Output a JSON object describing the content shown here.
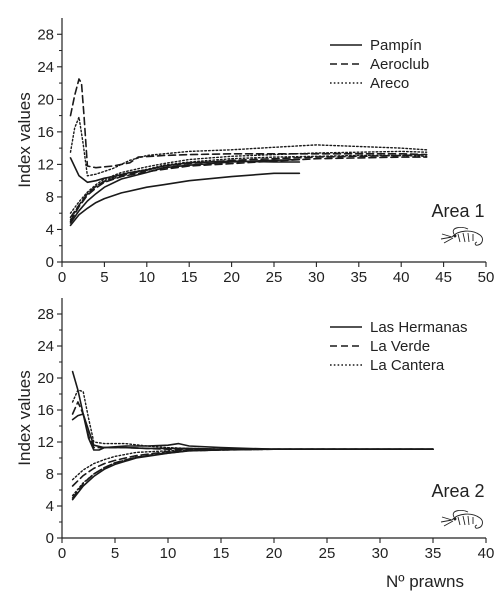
{
  "chart_data": [
    {
      "type": "line",
      "panel": "top",
      "ylabel": "Index values",
      "xlabel": "",
      "xlim": [
        0,
        50
      ],
      "ylim": [
        0,
        30
      ],
      "xticks": [
        0,
        5,
        10,
        15,
        20,
        25,
        30,
        35,
        40,
        45,
        50
      ],
      "yticks": [
        0,
        4,
        8,
        12,
        16,
        20,
        24,
        28
      ],
      "annotation": "Area 1",
      "icon": "prawn-icon",
      "legend_position": "top-right",
      "grid": false,
      "legend": [
        {
          "name": "Pampín",
          "style": "solid"
        },
        {
          "name": "Aeroclub",
          "style": "dashed"
        },
        {
          "name": "Areco",
          "style": "dotted"
        }
      ],
      "series": [
        {
          "name": "Pampín",
          "style": "solid",
          "x": [
            1,
            2,
            3,
            4,
            5,
            6,
            8,
            10,
            12,
            15,
            20,
            25,
            28
          ],
          "y": [
            12.8,
            10.6,
            9.8,
            10.0,
            10.3,
            10.5,
            11.0,
            11.3,
            11.8,
            12.2,
            12.4,
            12.3,
            12.3
          ]
        },
        {
          "name": "Pampín",
          "style": "solid",
          "x": [
            1,
            2,
            3,
            4,
            5,
            7,
            10,
            12,
            15,
            20,
            25,
            28
          ],
          "y": [
            4.5,
            5.8,
            6.6,
            7.3,
            7.8,
            8.5,
            9.2,
            9.5,
            10.0,
            10.5,
            10.9,
            10.9
          ]
        },
        {
          "name": "Pampín",
          "style": "solid",
          "x": [
            1,
            2,
            3,
            4,
            5,
            7,
            10,
            12,
            15,
            20,
            25,
            28
          ],
          "y": [
            4.8,
            6.3,
            7.5,
            8.4,
            9.2,
            10.2,
            11.0,
            11.6,
            11.9,
            12.3,
            12.5,
            12.6
          ]
        },
        {
          "name": "Aeroclub",
          "style": "dashed",
          "x": [
            1,
            1.5,
            2,
            2.3,
            2.6,
            3,
            4,
            6,
            8,
            9,
            12,
            15,
            20,
            25,
            30,
            35,
            40,
            43
          ],
          "y": [
            18.0,
            20.5,
            22.5,
            22.0,
            18.0,
            11.8,
            11.6,
            11.8,
            12.2,
            12.9,
            13.1,
            13.2,
            13.3,
            13.3,
            13.3,
            13.3,
            13.3,
            13.2
          ]
        },
        {
          "name": "Aeroclub",
          "style": "dashed",
          "x": [
            1,
            2,
            3,
            4,
            5,
            7,
            10,
            12,
            15,
            20,
            25,
            30,
            35,
            40,
            43
          ],
          "y": [
            5.5,
            7.0,
            8.4,
            9.3,
            9.9,
            10.6,
            11.3,
            11.8,
            12.1,
            12.5,
            12.7,
            12.9,
            13.0,
            13.1,
            13.2
          ]
        },
        {
          "name": "Aeroclub",
          "style": "dashed",
          "x": [
            1,
            2,
            3,
            4,
            5,
            7,
            10,
            12,
            15,
            20,
            25,
            30,
            35,
            40,
            43
          ],
          "y": [
            5.0,
            6.8,
            8.2,
            9.1,
            9.8,
            10.5,
            11.1,
            11.4,
            11.8,
            12.1,
            12.4,
            12.7,
            12.8,
            12.9,
            12.9
          ]
        },
        {
          "name": "Areco",
          "style": "dotted",
          "x": [
            1,
            1.5,
            2,
            2.5,
            3,
            4,
            6,
            8,
            10,
            12,
            15,
            20,
            25,
            30,
            35,
            40,
            43
          ],
          "y": [
            13.5,
            16.5,
            17.8,
            14.5,
            10.6,
            10.8,
            11.5,
            12.5,
            13.1,
            13.3,
            13.6,
            13.8,
            14.1,
            14.4,
            14.2,
            14.0,
            13.8
          ]
        },
        {
          "name": "Areco",
          "style": "dotted",
          "x": [
            1,
            2,
            3,
            4,
            5,
            7,
            10,
            12,
            15,
            20,
            25,
            30,
            35,
            40,
            43
          ],
          "y": [
            6.0,
            7.4,
            8.6,
            9.5,
            10.2,
            11.0,
            11.7,
            12.1,
            12.6,
            13.0,
            13.2,
            13.4,
            13.5,
            13.6,
            13.5
          ]
        },
        {
          "name": "Areco",
          "style": "dotted",
          "x": [
            1,
            2,
            3,
            4,
            5,
            7,
            10,
            12,
            15,
            20,
            25,
            30,
            35,
            40,
            43
          ],
          "y": [
            5.2,
            7.0,
            8.4,
            9.3,
            10.0,
            10.8,
            11.4,
            11.9,
            12.3,
            12.7,
            12.9,
            13.0,
            13.1,
            13.1,
            13.0
          ]
        }
      ]
    },
    {
      "type": "line",
      "panel": "bottom",
      "ylabel": "Index values",
      "xlabel": "Nº prawns",
      "xlim": [
        0,
        40
      ],
      "ylim": [
        0,
        30
      ],
      "xticks": [
        0,
        5,
        10,
        15,
        20,
        25,
        30,
        35,
        40
      ],
      "yticks": [
        0,
        4,
        8,
        12,
        16,
        20,
        24,
        28
      ],
      "annotation": "Area 2",
      "icon": "prawn-icon",
      "legend_position": "top-right",
      "grid": false,
      "legend": [
        {
          "name": "Las Hermanas",
          "style": "solid"
        },
        {
          "name": "La Verde",
          "style": "dashed"
        },
        {
          "name": "La Cantera",
          "style": "dotted"
        }
      ],
      "series": [
        {
          "name": "Las Hermanas",
          "style": "solid",
          "x": [
            1,
            1.5,
            2,
            2.5,
            3,
            3.5,
            4,
            6,
            8,
            10,
            11,
            12,
            15,
            20,
            25,
            30,
            35
          ],
          "y": [
            20.8,
            18.5,
            15.5,
            12.5,
            11.0,
            11.0,
            11.3,
            11.5,
            11.5,
            11.6,
            11.8,
            11.5,
            11.3,
            11.1,
            11.1,
            11.1,
            11.1
          ]
        },
        {
          "name": "Las Hermanas",
          "style": "solid",
          "x": [
            1,
            1.5,
            2,
            2.5,
            3,
            4,
            6,
            8,
            10,
            12,
            15,
            20,
            25,
            30,
            35
          ],
          "y": [
            14.8,
            15.3,
            15.5,
            13.5,
            11.6,
            11.3,
            11.3,
            11.2,
            11.2,
            11.2,
            11.1,
            11.1,
            11.1,
            11.1,
            11.1
          ]
        },
        {
          "name": "Las Hermanas",
          "style": "solid",
          "x": [
            1,
            2,
            3,
            4,
            5,
            7,
            10,
            12,
            15,
            20,
            25,
            30,
            35
          ],
          "y": [
            4.8,
            6.5,
            7.7,
            8.6,
            9.2,
            10.0,
            10.6,
            10.9,
            11.0,
            11.1,
            11.1,
            11.1,
            11.1
          ]
        },
        {
          "name": "La Verde",
          "style": "dashed",
          "x": [
            1,
            1.5,
            2,
            2.5,
            3,
            4,
            6,
            8,
            10,
            12,
            15,
            20,
            25,
            30,
            35
          ],
          "y": [
            15.5,
            17.0,
            15.5,
            12.8,
            11.3,
            11.3,
            11.3,
            11.2,
            11.1,
            11.1,
            11.1,
            11.1,
            11.1,
            11.1,
            11.1
          ]
        },
        {
          "name": "La Verde",
          "style": "dashed",
          "x": [
            1,
            2,
            3,
            4,
            5,
            7,
            10,
            12,
            15,
            20,
            25,
            30,
            35
          ],
          "y": [
            6.5,
            7.8,
            8.7,
            9.3,
            9.7,
            10.3,
            10.8,
            11.0,
            11.1,
            11.1,
            11.1,
            11.1,
            11.1
          ]
        },
        {
          "name": "La Verde",
          "style": "dashed",
          "x": [
            1,
            2,
            3,
            4,
            5,
            7,
            10,
            12,
            15,
            20,
            25,
            30,
            35
          ],
          "y": [
            5.0,
            6.8,
            8.0,
            8.8,
            9.4,
            10.1,
            10.7,
            10.9,
            11.0,
            11.1,
            11.1,
            11.1,
            11.1
          ]
        },
        {
          "name": "La Cantera",
          "style": "dotted",
          "x": [
            1,
            1.5,
            2,
            2.5,
            3,
            4,
            5,
            6,
            8,
            10,
            12,
            15,
            20,
            25,
            30,
            35
          ],
          "y": [
            17.0,
            18.5,
            18.3,
            15.0,
            12.0,
            11.8,
            11.8,
            11.8,
            11.5,
            11.3,
            11.2,
            11.1,
            11.1,
            11.1,
            11.1,
            11.1
          ]
        },
        {
          "name": "La Cantera",
          "style": "dotted",
          "x": [
            1,
            2,
            3,
            4,
            5,
            7,
            10,
            12,
            15,
            20,
            25,
            30,
            35
          ],
          "y": [
            7.3,
            8.5,
            9.3,
            9.8,
            10.2,
            10.7,
            10.9,
            11.0,
            11.1,
            11.1,
            11.1,
            11.1,
            11.1
          ]
        },
        {
          "name": "La Cantera",
          "style": "dotted",
          "x": [
            1,
            2,
            3,
            4,
            5,
            7,
            10,
            12,
            15,
            20,
            25,
            30,
            35
          ],
          "y": [
            5.3,
            6.9,
            8.0,
            8.8,
            9.4,
            10.1,
            10.6,
            10.9,
            11.0,
            11.1,
            11.1,
            11.1,
            11.1
          ]
        }
      ]
    }
  ]
}
